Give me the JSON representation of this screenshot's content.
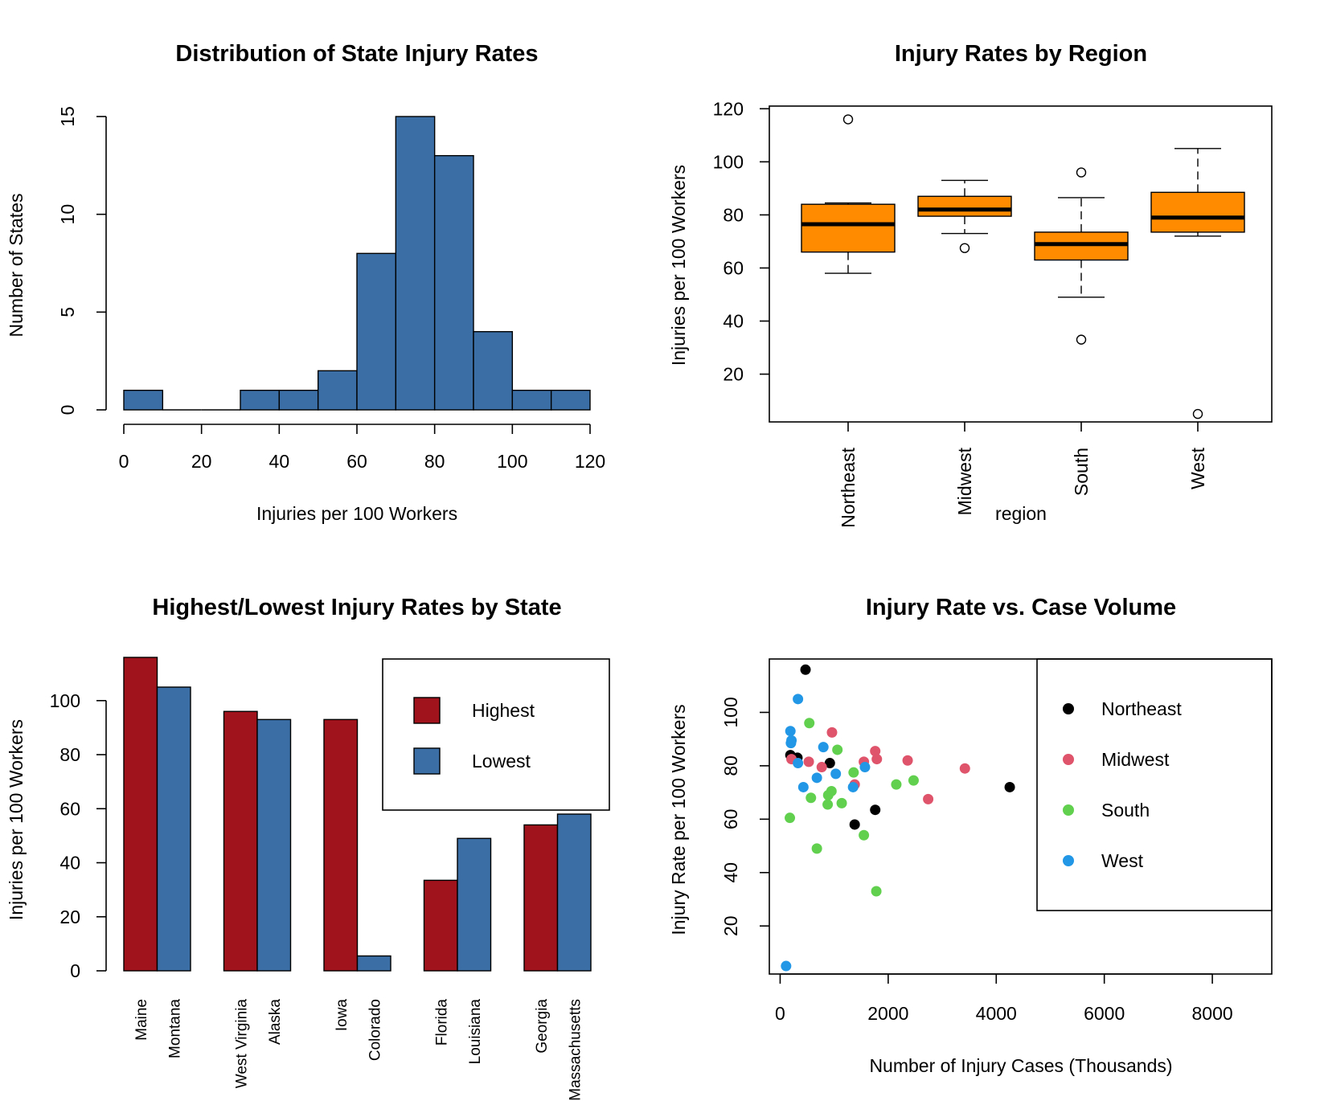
{
  "chart_data": [
    {
      "type": "histogram",
      "title": "Distribution of State Injury Rates",
      "xlabel": "Injuries per 100 Workers",
      "ylabel": "Number of States",
      "xlim": [
        0,
        120
      ],
      "ylim": [
        0,
        15
      ],
      "xticks": [
        "0",
        "20",
        "40",
        "60",
        "80",
        "100",
        "120"
      ],
      "yticks": [
        "0",
        "5",
        "10",
        "15"
      ],
      "bins": [
        [
          0,
          10
        ],
        [
          10,
          20
        ],
        [
          20,
          30
        ],
        [
          30,
          40
        ],
        [
          40,
          50
        ],
        [
          50,
          60
        ],
        [
          60,
          70
        ],
        [
          70,
          80
        ],
        [
          80,
          90
        ],
        [
          90,
          100
        ],
        [
          100,
          110
        ],
        [
          110,
          120
        ]
      ],
      "counts": [
        1,
        0,
        0,
        1,
        1,
        2,
        8,
        15,
        13,
        4,
        1,
        1
      ],
      "bar_color": "#3A6EA5"
    },
    {
      "type": "box",
      "title": "Injury Rates by Region",
      "xlabel": "region",
      "ylabel": "Injuries per 100 Workers",
      "categories": [
        "Northeast",
        "Midwest",
        "South",
        "West"
      ],
      "yticks": [
        "20",
        "40",
        "60",
        "80",
        "100",
        "120"
      ],
      "ylim": [
        2,
        121
      ],
      "box_color": "#FF8C00",
      "boxes": [
        {
          "name": "Northeast",
          "min": 58,
          "q1": 66,
          "median": 76.5,
          "q3": 84,
          "max": 84.5,
          "outliers": [
            116
          ]
        },
        {
          "name": "Midwest",
          "min": 73,
          "q1": 79.5,
          "median": 82,
          "q3": 87,
          "max": 93,
          "outliers": [
            67.5
          ]
        },
        {
          "name": "South",
          "min": 49,
          "q1": 63,
          "median": 69,
          "q3": 73.5,
          "max": 86.5,
          "outliers": [
            96,
            33
          ]
        },
        {
          "name": "West",
          "min": 72,
          "q1": 73.5,
          "median": 79,
          "q3": 88.5,
          "max": 105,
          "outliers": [
            5
          ]
        }
      ]
    },
    {
      "type": "bar",
      "title": "Highest/Lowest Injury Rates by State",
      "ylabel": "Injuries per 100 Workers",
      "ylim": [
        0,
        116
      ],
      "yticks": [
        "0",
        "20",
        "40",
        "60",
        "80",
        "100"
      ],
      "legend_position": "top-right",
      "series": [
        {
          "name": "Highest",
          "color": "#A0121C",
          "states": [
            "Maine",
            "West Virginia",
            "Iowa",
            "Florida",
            "Georgia"
          ],
          "values": [
            116,
            96,
            93,
            33.5,
            54
          ]
        },
        {
          "name": "Lowest",
          "color": "#3A6EA5",
          "states": [
            "Montana",
            "Alaska",
            "Colorado",
            "Louisiana",
            "Massachusetts"
          ],
          "values": [
            105,
            93,
            5.5,
            49,
            58
          ]
        }
      ]
    },
    {
      "type": "scatter",
      "title": "Injury Rate vs. Case Volume",
      "xlabel": "Number of Injury Cases (Thousands)",
      "ylabel": "Injury Rate per 100 Workers",
      "xlim": [
        -200,
        9100
      ],
      "ylim": [
        2,
        120
      ],
      "xticks": [
        "0",
        "2000",
        "4000",
        "6000",
        "8000"
      ],
      "yticks": [
        "20",
        "40",
        "60",
        "80",
        "100"
      ],
      "legend_position": "top-right",
      "series": [
        {
          "name": "Northeast",
          "color": "#000000",
          "points": [
            [
              190,
              84
            ],
            [
              320,
              83
            ],
            [
              470,
              116
            ],
            [
              920,
              81
            ],
            [
              1380,
              58
            ],
            [
              1760,
              63.5
            ],
            [
              4250,
              72
            ]
          ]
        },
        {
          "name": "Midwest",
          "color": "#DF536B",
          "points": [
            [
              210,
              82.5
            ],
            [
              530,
              81.5
            ],
            [
              770,
              79.5
            ],
            [
              960,
              92.5
            ],
            [
              1380,
              73
            ],
            [
              1550,
              81.5
            ],
            [
              1760,
              85.5
            ],
            [
              1790,
              82.5
            ],
            [
              2360,
              82
            ],
            [
              2740,
              67.5
            ],
            [
              3420,
              79
            ]
          ]
        },
        {
          "name": "South",
          "color": "#61D04F",
          "points": [
            [
              180,
              60.5
            ],
            [
              540,
              96
            ],
            [
              570,
              68
            ],
            [
              680,
              49
            ],
            [
              880,
              65.5
            ],
            [
              890,
              69
            ],
            [
              950,
              70.5
            ],
            [
              1060,
              86
            ],
            [
              1140,
              66
            ],
            [
              1360,
              77.5
            ],
            [
              1550,
              54
            ],
            [
              1780,
              33
            ],
            [
              2150,
              73
            ],
            [
              2470,
              74.5
            ]
          ]
        },
        {
          "name": "West",
          "color": "#2297E6",
          "points": [
            [
              110,
              5
            ],
            [
              190,
              93
            ],
            [
              200,
              88.5
            ],
            [
              210,
              89.5
            ],
            [
              330,
              81
            ],
            [
              330,
              105
            ],
            [
              430,
              72
            ],
            [
              680,
              75.5
            ],
            [
              800,
              87
            ],
            [
              1030,
              77
            ],
            [
              1350,
              72
            ],
            [
              1570,
              79.5
            ]
          ]
        }
      ]
    }
  ]
}
